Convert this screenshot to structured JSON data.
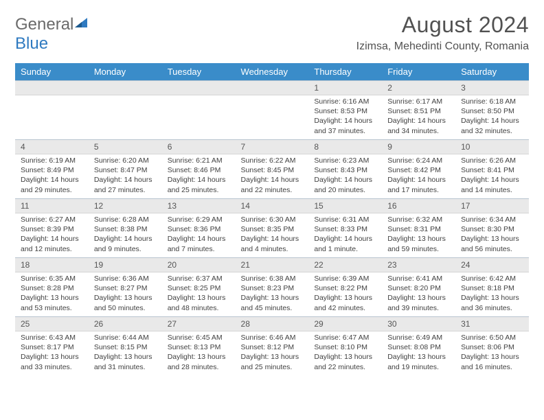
{
  "brand": {
    "general": "General",
    "blue": "Blue"
  },
  "title": "August 2024",
  "location": "Izimsa, Mehedinti County, Romania",
  "colors": {
    "header_bg": "#3a8cc9",
    "header_text": "#ffffff",
    "daynum_bg": "#e9e9e9",
    "border": "#b8c4cf",
    "text": "#3f3f3f",
    "brand_gray": "#6a6a6a",
    "brand_blue": "#2f7ac0"
  },
  "dayNames": [
    "Sunday",
    "Monday",
    "Tuesday",
    "Wednesday",
    "Thursday",
    "Friday",
    "Saturday"
  ],
  "weeks": [
    [
      null,
      null,
      null,
      null,
      {
        "num": "1",
        "sunrise": "6:16 AM",
        "sunset": "8:53 PM",
        "daylight": "14 hours and 37 minutes."
      },
      {
        "num": "2",
        "sunrise": "6:17 AM",
        "sunset": "8:51 PM",
        "daylight": "14 hours and 34 minutes."
      },
      {
        "num": "3",
        "sunrise": "6:18 AM",
        "sunset": "8:50 PM",
        "daylight": "14 hours and 32 minutes."
      }
    ],
    [
      {
        "num": "4",
        "sunrise": "6:19 AM",
        "sunset": "8:49 PM",
        "daylight": "14 hours and 29 minutes."
      },
      {
        "num": "5",
        "sunrise": "6:20 AM",
        "sunset": "8:47 PM",
        "daylight": "14 hours and 27 minutes."
      },
      {
        "num": "6",
        "sunrise": "6:21 AM",
        "sunset": "8:46 PM",
        "daylight": "14 hours and 25 minutes."
      },
      {
        "num": "7",
        "sunrise": "6:22 AM",
        "sunset": "8:45 PM",
        "daylight": "14 hours and 22 minutes."
      },
      {
        "num": "8",
        "sunrise": "6:23 AM",
        "sunset": "8:43 PM",
        "daylight": "14 hours and 20 minutes."
      },
      {
        "num": "9",
        "sunrise": "6:24 AM",
        "sunset": "8:42 PM",
        "daylight": "14 hours and 17 minutes."
      },
      {
        "num": "10",
        "sunrise": "6:26 AM",
        "sunset": "8:41 PM",
        "daylight": "14 hours and 14 minutes."
      }
    ],
    [
      {
        "num": "11",
        "sunrise": "6:27 AM",
        "sunset": "8:39 PM",
        "daylight": "14 hours and 12 minutes."
      },
      {
        "num": "12",
        "sunrise": "6:28 AM",
        "sunset": "8:38 PM",
        "daylight": "14 hours and 9 minutes."
      },
      {
        "num": "13",
        "sunrise": "6:29 AM",
        "sunset": "8:36 PM",
        "daylight": "14 hours and 7 minutes."
      },
      {
        "num": "14",
        "sunrise": "6:30 AM",
        "sunset": "8:35 PM",
        "daylight": "14 hours and 4 minutes."
      },
      {
        "num": "15",
        "sunrise": "6:31 AM",
        "sunset": "8:33 PM",
        "daylight": "14 hours and 1 minute."
      },
      {
        "num": "16",
        "sunrise": "6:32 AM",
        "sunset": "8:31 PM",
        "daylight": "13 hours and 59 minutes."
      },
      {
        "num": "17",
        "sunrise": "6:34 AM",
        "sunset": "8:30 PM",
        "daylight": "13 hours and 56 minutes."
      }
    ],
    [
      {
        "num": "18",
        "sunrise": "6:35 AM",
        "sunset": "8:28 PM",
        "daylight": "13 hours and 53 minutes."
      },
      {
        "num": "19",
        "sunrise": "6:36 AM",
        "sunset": "8:27 PM",
        "daylight": "13 hours and 50 minutes."
      },
      {
        "num": "20",
        "sunrise": "6:37 AM",
        "sunset": "8:25 PM",
        "daylight": "13 hours and 48 minutes."
      },
      {
        "num": "21",
        "sunrise": "6:38 AM",
        "sunset": "8:23 PM",
        "daylight": "13 hours and 45 minutes."
      },
      {
        "num": "22",
        "sunrise": "6:39 AM",
        "sunset": "8:22 PM",
        "daylight": "13 hours and 42 minutes."
      },
      {
        "num": "23",
        "sunrise": "6:41 AM",
        "sunset": "8:20 PM",
        "daylight": "13 hours and 39 minutes."
      },
      {
        "num": "24",
        "sunrise": "6:42 AM",
        "sunset": "8:18 PM",
        "daylight": "13 hours and 36 minutes."
      }
    ],
    [
      {
        "num": "25",
        "sunrise": "6:43 AM",
        "sunset": "8:17 PM",
        "daylight": "13 hours and 33 minutes."
      },
      {
        "num": "26",
        "sunrise": "6:44 AM",
        "sunset": "8:15 PM",
        "daylight": "13 hours and 31 minutes."
      },
      {
        "num": "27",
        "sunrise": "6:45 AM",
        "sunset": "8:13 PM",
        "daylight": "13 hours and 28 minutes."
      },
      {
        "num": "28",
        "sunrise": "6:46 AM",
        "sunset": "8:12 PM",
        "daylight": "13 hours and 25 minutes."
      },
      {
        "num": "29",
        "sunrise": "6:47 AM",
        "sunset": "8:10 PM",
        "daylight": "13 hours and 22 minutes."
      },
      {
        "num": "30",
        "sunrise": "6:49 AM",
        "sunset": "8:08 PM",
        "daylight": "13 hours and 19 minutes."
      },
      {
        "num": "31",
        "sunrise": "6:50 AM",
        "sunset": "8:06 PM",
        "daylight": "13 hours and 16 minutes."
      }
    ]
  ],
  "labels": {
    "sunrise": "Sunrise: ",
    "sunset": "Sunset: ",
    "daylight": "Daylight: "
  }
}
